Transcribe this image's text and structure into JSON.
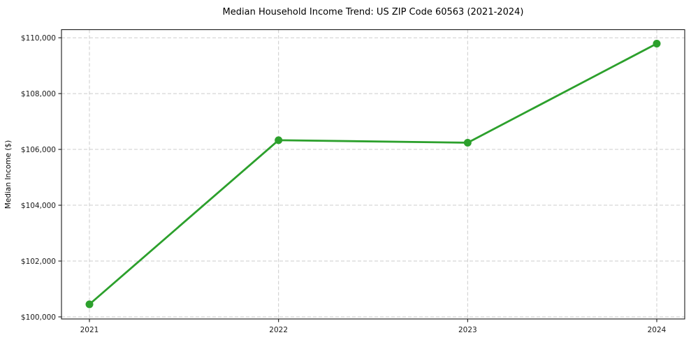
{
  "chart_data": {
    "type": "line",
    "title": "Median Household Income Trend: US ZIP Code 60563 (2021-2024)",
    "xlabel": "",
    "ylabel": "Median Income ($)",
    "categories": [
      "2021",
      "2022",
      "2023",
      "2024"
    ],
    "values": [
      100450,
      106330,
      106240,
      109790
    ],
    "yticks": {
      "values": [
        100000,
        102000,
        104000,
        106000,
        108000,
        110000
      ],
      "labels": [
        "$100,000",
        "$102,000",
        "$104,000",
        "$106,000",
        "$108,000",
        "$110,000"
      ]
    },
    "ylim": [
      99925,
      110290
    ],
    "grid": "both-dashed",
    "legend": "none",
    "marker": "circle",
    "colors": {
      "line": "#2ca02c",
      "marker": "#2ca02c",
      "grid": "#cccccc",
      "spine": "#1a1a1a",
      "text": "#1a1a1a"
    }
  }
}
